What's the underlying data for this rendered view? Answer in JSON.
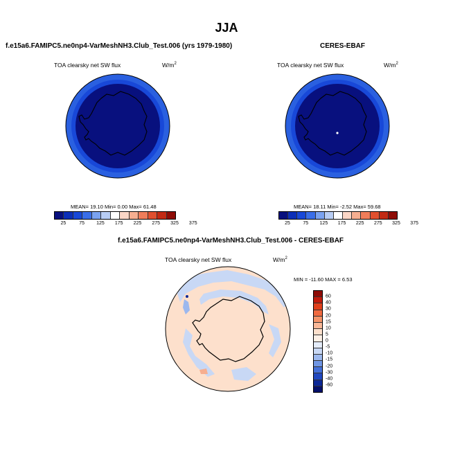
{
  "season": "JJA",
  "panels": {
    "model": {
      "title": "f.e15a6.FAMIPC5.ne0np4-VarMeshNH3.Club_Test.006 (yrs 1979-1980)",
      "var": "TOA clearsky net SW flux",
      "units_base": "W/m",
      "units_exp": "2",
      "stats": "MEAN=  19.10  Min=   0.00  Max=  61.48"
    },
    "obs": {
      "title": "CERES-EBAF",
      "var": "TOA clearsky net SW flux",
      "units_base": "W/m",
      "units_exp": "2",
      "stats": "MEAN=  18.11  Min=  -2.52  Max=  59.68"
    },
    "diff": {
      "title": "f.e15a6.FAMIPC5.ne0np4-VarMeshNH3.Club_Test.006 - CERES-EBAF",
      "var": "TOA clearsky net SW flux",
      "units_base": "W/m",
      "units_exp": "2",
      "stats": "MIN = -11.60 MAX =   6.53"
    }
  },
  "colorbar_abs": {
    "colors": [
      "#08107e",
      "#0c2fb8",
      "#1848d8",
      "#3a6ee8",
      "#7aa2f0",
      "#b8cdf4",
      "#ffffff",
      "#fbd6c6",
      "#f6ae90",
      "#ef7d5a",
      "#e0502f",
      "#c22a14",
      "#8e0c06"
    ],
    "ticks": [
      "25",
      "75",
      "125",
      "175",
      "225",
      "275",
      "325",
      "375"
    ]
  },
  "colorbar_diff": {
    "colors": [
      "#8e0c06",
      "#c21a0c",
      "#e0401c",
      "#f06a40",
      "#f5946a",
      "#f9b898",
      "#fde0cc",
      "#fdf0e6",
      "#e4ecf9",
      "#c8d8f5",
      "#9cb8ee",
      "#7096e4",
      "#4470da",
      "#2148c0",
      "#0c2896",
      "#04106a"
    ],
    "ticks": [
      "60",
      "40",
      "30",
      "20",
      "15",
      "10",
      "5",
      "0",
      "-5",
      "-10",
      "-15",
      "-20",
      "-30",
      "-40",
      "-60"
    ]
  },
  "chart_data": [
    {
      "type": "heatmap",
      "title": "f.e15a6.FAMIPC5.ne0np4-VarMeshNH3.Club_Test.006 (yrs 1979-1980)",
      "variable": "TOA clearsky net SW flux",
      "units": "W/m2",
      "projection": "south-polar stereographic",
      "mean": 19.1,
      "min": 0.0,
      "max": 61.48,
      "levels": [
        25,
        50,
        75,
        100,
        125,
        150,
        175,
        200,
        225,
        250,
        275,
        300,
        325,
        350,
        375
      ]
    },
    {
      "type": "heatmap",
      "title": "CERES-EBAF",
      "variable": "TOA clearsky net SW flux",
      "units": "W/m2",
      "projection": "south-polar stereographic",
      "mean": 18.11,
      "min": -2.52,
      "max": 59.68,
      "levels": [
        25,
        50,
        75,
        100,
        125,
        150,
        175,
        200,
        225,
        250,
        275,
        300,
        325,
        350,
        375
      ]
    },
    {
      "type": "heatmap",
      "title": "f.e15a6.FAMIPC5.ne0np4-VarMeshNH3.Club_Test.006 - CERES-EBAF",
      "variable": "TOA clearsky net SW flux",
      "units": "W/m2",
      "projection": "south-polar stereographic",
      "min": -11.6,
      "max": 6.53,
      "levels": [
        -60,
        -40,
        -30,
        -20,
        -15,
        -10,
        -5,
        0,
        5,
        10,
        15,
        20,
        30,
        40,
        60
      ]
    }
  ]
}
